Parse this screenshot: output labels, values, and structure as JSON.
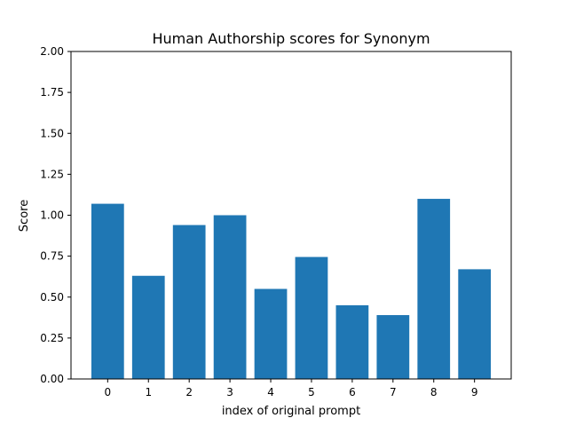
{
  "chart_data": {
    "type": "bar",
    "title": "Human Authorship scores for Synonym",
    "xlabel": "index of original prompt",
    "ylabel": "Score",
    "categories": [
      "0",
      "1",
      "2",
      "3",
      "4",
      "5",
      "6",
      "7",
      "8",
      "9"
    ],
    "values": [
      1.07,
      0.63,
      0.94,
      1.0,
      0.55,
      0.745,
      0.45,
      0.39,
      1.1,
      0.67
    ],
    "ylim": [
      0,
      2.0
    ],
    "yticks": [
      "0.00",
      "0.25",
      "0.50",
      "0.75",
      "1.00",
      "1.25",
      "1.50",
      "1.75",
      "2.00"
    ],
    "bar_color": "#1f77b4",
    "grid": false
  }
}
